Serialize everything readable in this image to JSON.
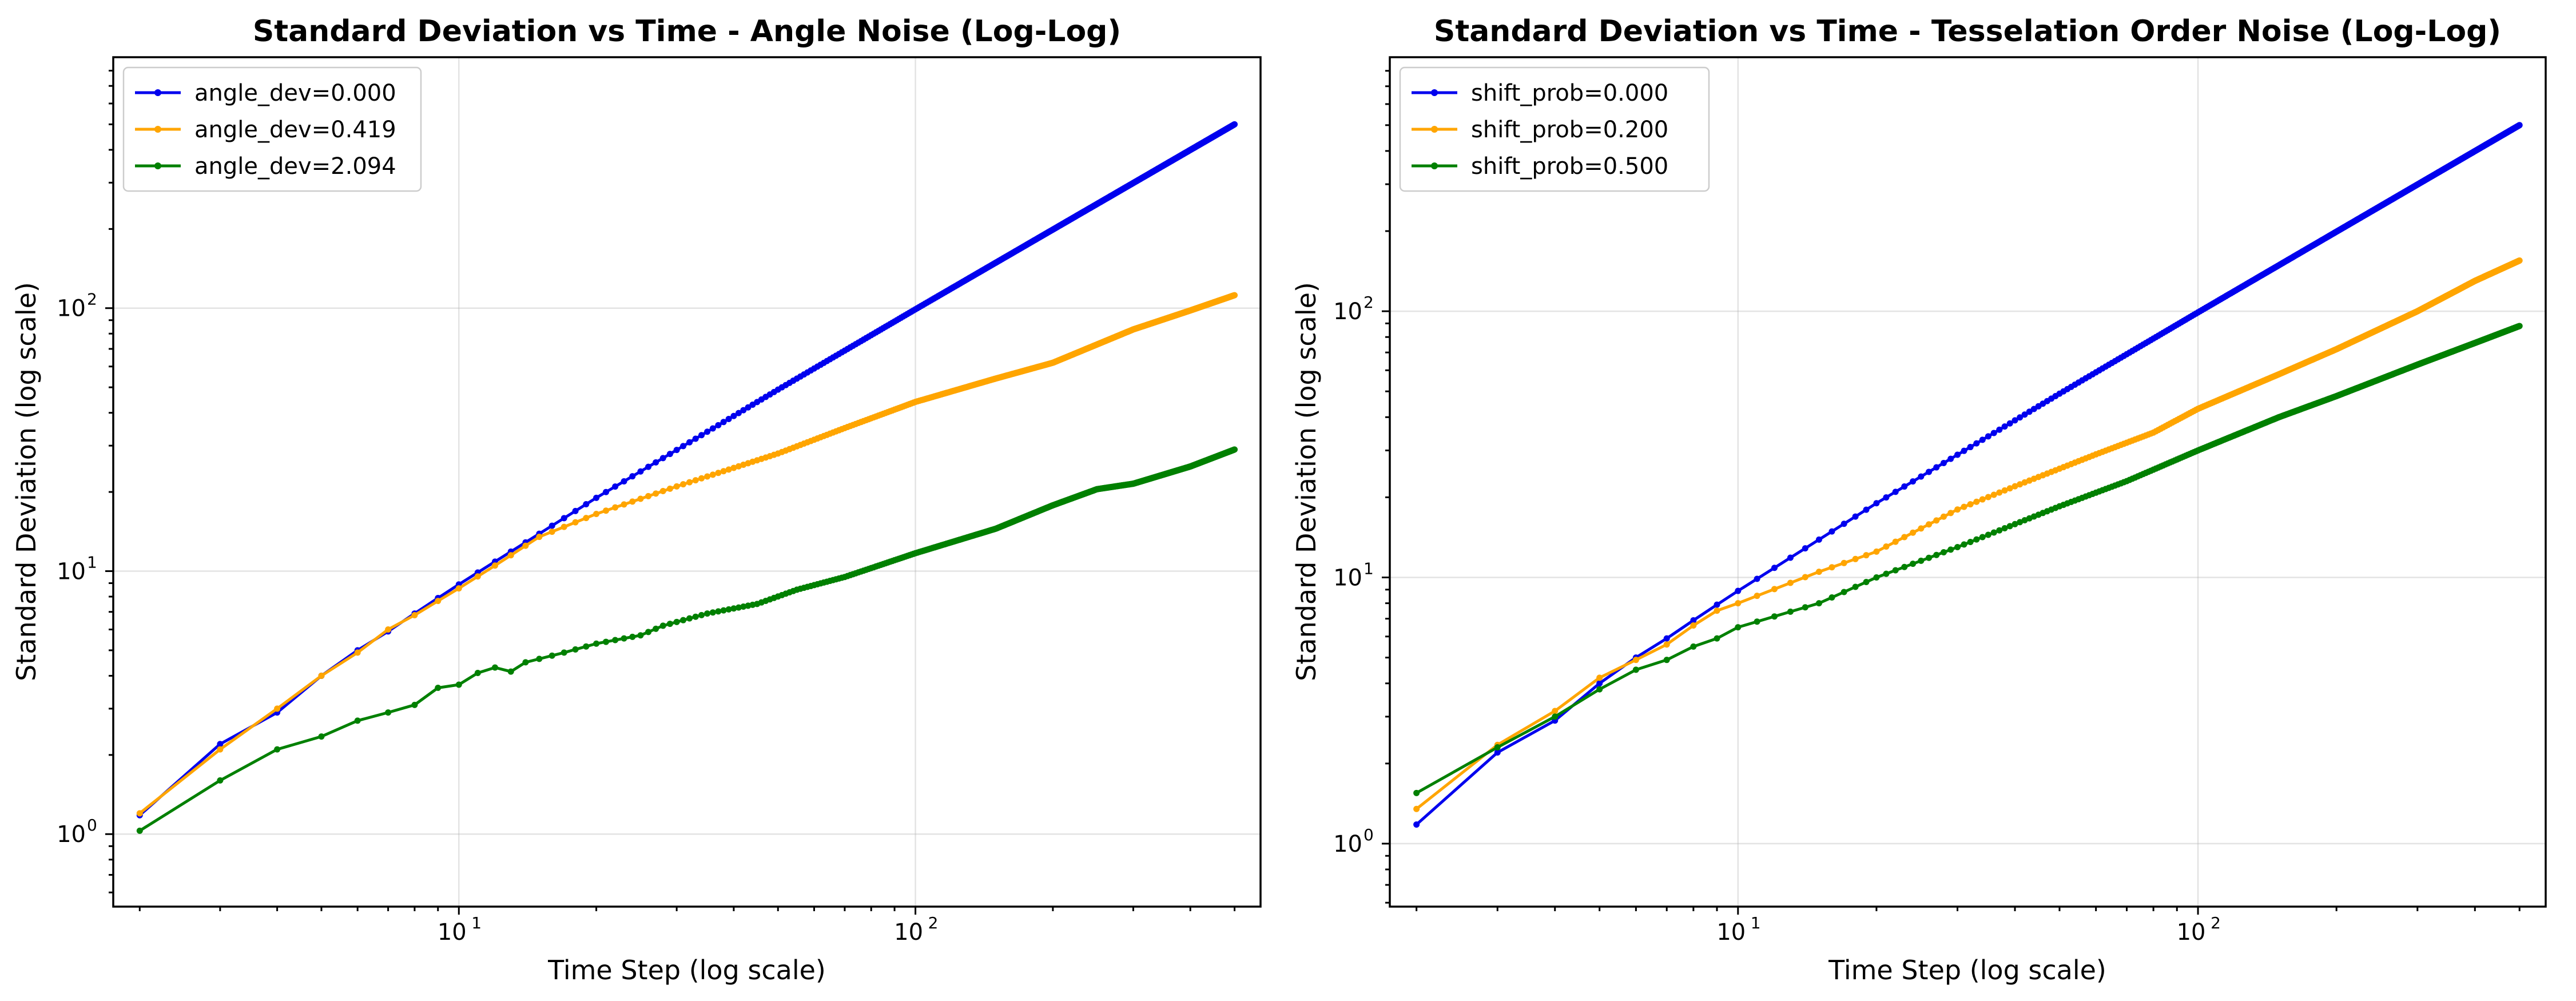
{
  "chart_data": [
    {
      "type": "line",
      "title": "Standard Deviation vs Time - Angle Noise (Log-Log)",
      "xlabel": "Time Step (log scale)",
      "ylabel": "Standard Deviation (log scale)",
      "x_scale": "log",
      "y_scale": "log",
      "xlim": [
        1.75,
        570
      ],
      "ylim": [
        0.53,
        900
      ],
      "x_ticks": [
        {
          "value": 10,
          "base": "10",
          "exp": "1"
        },
        {
          "value": 100,
          "base": "10",
          "exp": "2"
        }
      ],
      "y_ticks": [
        {
          "value": 1,
          "base": "10",
          "exp": "0"
        },
        {
          "value": 10,
          "base": "10",
          "exp": "1"
        },
        {
          "value": 100,
          "base": "10",
          "exp": "2"
        }
      ],
      "grid": true,
      "legend_position": "top-left",
      "series": [
        {
          "name": "angle_dev=0.000",
          "color": "#0000ee",
          "x_range": [
            2,
            500
          ],
          "points": [
            [
              2,
              1.18
            ],
            [
              3,
              2.2
            ],
            [
              4,
              2.9
            ],
            [
              5,
              4.0
            ],
            [
              6,
              5.0
            ],
            [
              7,
              5.9
            ],
            [
              8,
              6.9
            ],
            [
              9,
              7.9
            ],
            [
              10,
              8.9
            ],
            [
              20,
              19
            ],
            [
              50,
              49
            ],
            [
              100,
              99
            ],
            [
              200,
              199
            ],
            [
              500,
              500
            ]
          ]
        },
        {
          "name": "angle_dev=0.419",
          "color": "#ffa500",
          "x_range": [
            2,
            500
          ],
          "points": [
            [
              2,
              1.2
            ],
            [
              3,
              2.1
            ],
            [
              4,
              3.0
            ],
            [
              5,
              4.0
            ],
            [
              6,
              4.9
            ],
            [
              7,
              6.0
            ],
            [
              8,
              6.8
            ],
            [
              9,
              7.7
            ],
            [
              10,
              8.6
            ],
            [
              12,
              10.5
            ],
            [
              15,
              13.5
            ],
            [
              20,
              16.5
            ],
            [
              30,
              21
            ],
            [
              50,
              28
            ],
            [
              70,
              35
            ],
            [
              100,
              44
            ],
            [
              150,
              54
            ],
            [
              200,
              62
            ],
            [
              300,
              83
            ],
            [
              400,
              98
            ],
            [
              500,
              112
            ]
          ]
        },
        {
          "name": "angle_dev=2.094",
          "color": "#008000",
          "x_range": [
            2,
            500
          ],
          "points": [
            [
              2,
              1.03
            ],
            [
              3,
              1.6
            ],
            [
              4,
              2.1
            ],
            [
              5,
              2.35
            ],
            [
              6,
              2.7
            ],
            [
              7,
              2.9
            ],
            [
              8,
              3.1
            ],
            [
              9,
              3.6
            ],
            [
              10,
              3.7
            ],
            [
              11,
              4.1
            ],
            [
              12,
              4.3
            ],
            [
              13,
              4.15
            ],
            [
              14,
              4.5
            ],
            [
              17,
              4.9
            ],
            [
              20,
              5.3
            ],
            [
              25,
              5.7
            ],
            [
              28,
              6.2
            ],
            [
              35,
              6.9
            ],
            [
              45,
              7.5
            ],
            [
              55,
              8.5
            ],
            [
              70,
              9.5
            ],
            [
              100,
              11.7
            ],
            [
              150,
              14.5
            ],
            [
              200,
              17.8
            ],
            [
              250,
              20.5
            ],
            [
              300,
              21.5
            ],
            [
              400,
              25
            ],
            [
              500,
              29
            ]
          ]
        }
      ]
    },
    {
      "type": "line",
      "title": "Standard Deviation vs Time - Tesselation Order Noise (Log-Log)",
      "xlabel": "Time Step (log scale)",
      "ylabel": "Standard Deviation (log scale)",
      "x_scale": "log",
      "y_scale": "log",
      "xlim": [
        1.75,
        570
      ],
      "ylim": [
        0.58,
        900
      ],
      "x_ticks": [
        {
          "value": 10,
          "base": "10",
          "exp": "1"
        },
        {
          "value": 100,
          "base": "10",
          "exp": "2"
        }
      ],
      "y_ticks": [
        {
          "value": 1,
          "base": "10",
          "exp": "0"
        },
        {
          "value": 10,
          "base": "10",
          "exp": "1"
        },
        {
          "value": 100,
          "base": "10",
          "exp": "2"
        }
      ],
      "grid": true,
      "legend_position": "top-left",
      "series": [
        {
          "name": "shift_prob=0.000",
          "color": "#0000ee",
          "x_range": [
            2,
            500
          ],
          "points": [
            [
              2,
              1.18
            ],
            [
              3,
              2.2
            ],
            [
              4,
              2.9
            ],
            [
              5,
              4.0
            ],
            [
              6,
              5.0
            ],
            [
              7,
              5.9
            ],
            [
              8,
              6.9
            ],
            [
              9,
              7.9
            ],
            [
              10,
              8.9
            ],
            [
              20,
              19
            ],
            [
              50,
              49
            ],
            [
              100,
              99
            ],
            [
              200,
              199
            ],
            [
              500,
              500
            ]
          ]
        },
        {
          "name": "shift_prob=0.200",
          "color": "#ffa500",
          "x_range": [
            2,
            500
          ],
          "points": [
            [
              2,
              1.35
            ],
            [
              3,
              2.35
            ],
            [
              4,
              3.15
            ],
            [
              5,
              4.2
            ],
            [
              6,
              4.9
            ],
            [
              7,
              5.6
            ],
            [
              8,
              6.6
            ],
            [
              9,
              7.5
            ],
            [
              10,
              8.0
            ],
            [
              15,
              10.5
            ],
            [
              20,
              12.5
            ],
            [
              30,
              18
            ],
            [
              40,
              22
            ],
            [
              60,
              29
            ],
            [
              80,
              35
            ],
            [
              100,
              43
            ],
            [
              150,
              58
            ],
            [
              200,
              72
            ],
            [
              300,
              100
            ],
            [
              400,
              130
            ],
            [
              500,
              155
            ]
          ]
        },
        {
          "name": "shift_prob=0.500",
          "color": "#008000",
          "x_range": [
            2,
            500
          ],
          "points": [
            [
              2,
              1.55
            ],
            [
              3,
              2.3
            ],
            [
              4,
              3.0
            ],
            [
              5,
              3.8
            ],
            [
              6,
              4.5
            ],
            [
              7,
              4.9
            ],
            [
              8,
              5.5
            ],
            [
              9,
              5.9
            ],
            [
              10,
              6.5
            ],
            [
              15,
              8.0
            ],
            [
              20,
              10
            ],
            [
              30,
              13
            ],
            [
              50,
              18.5
            ],
            [
              70,
              23
            ],
            [
              100,
              30
            ],
            [
              150,
              40
            ],
            [
              200,
              48
            ],
            [
              300,
              63
            ],
            [
              400,
              76
            ],
            [
              500,
              88
            ]
          ]
        }
      ]
    }
  ]
}
